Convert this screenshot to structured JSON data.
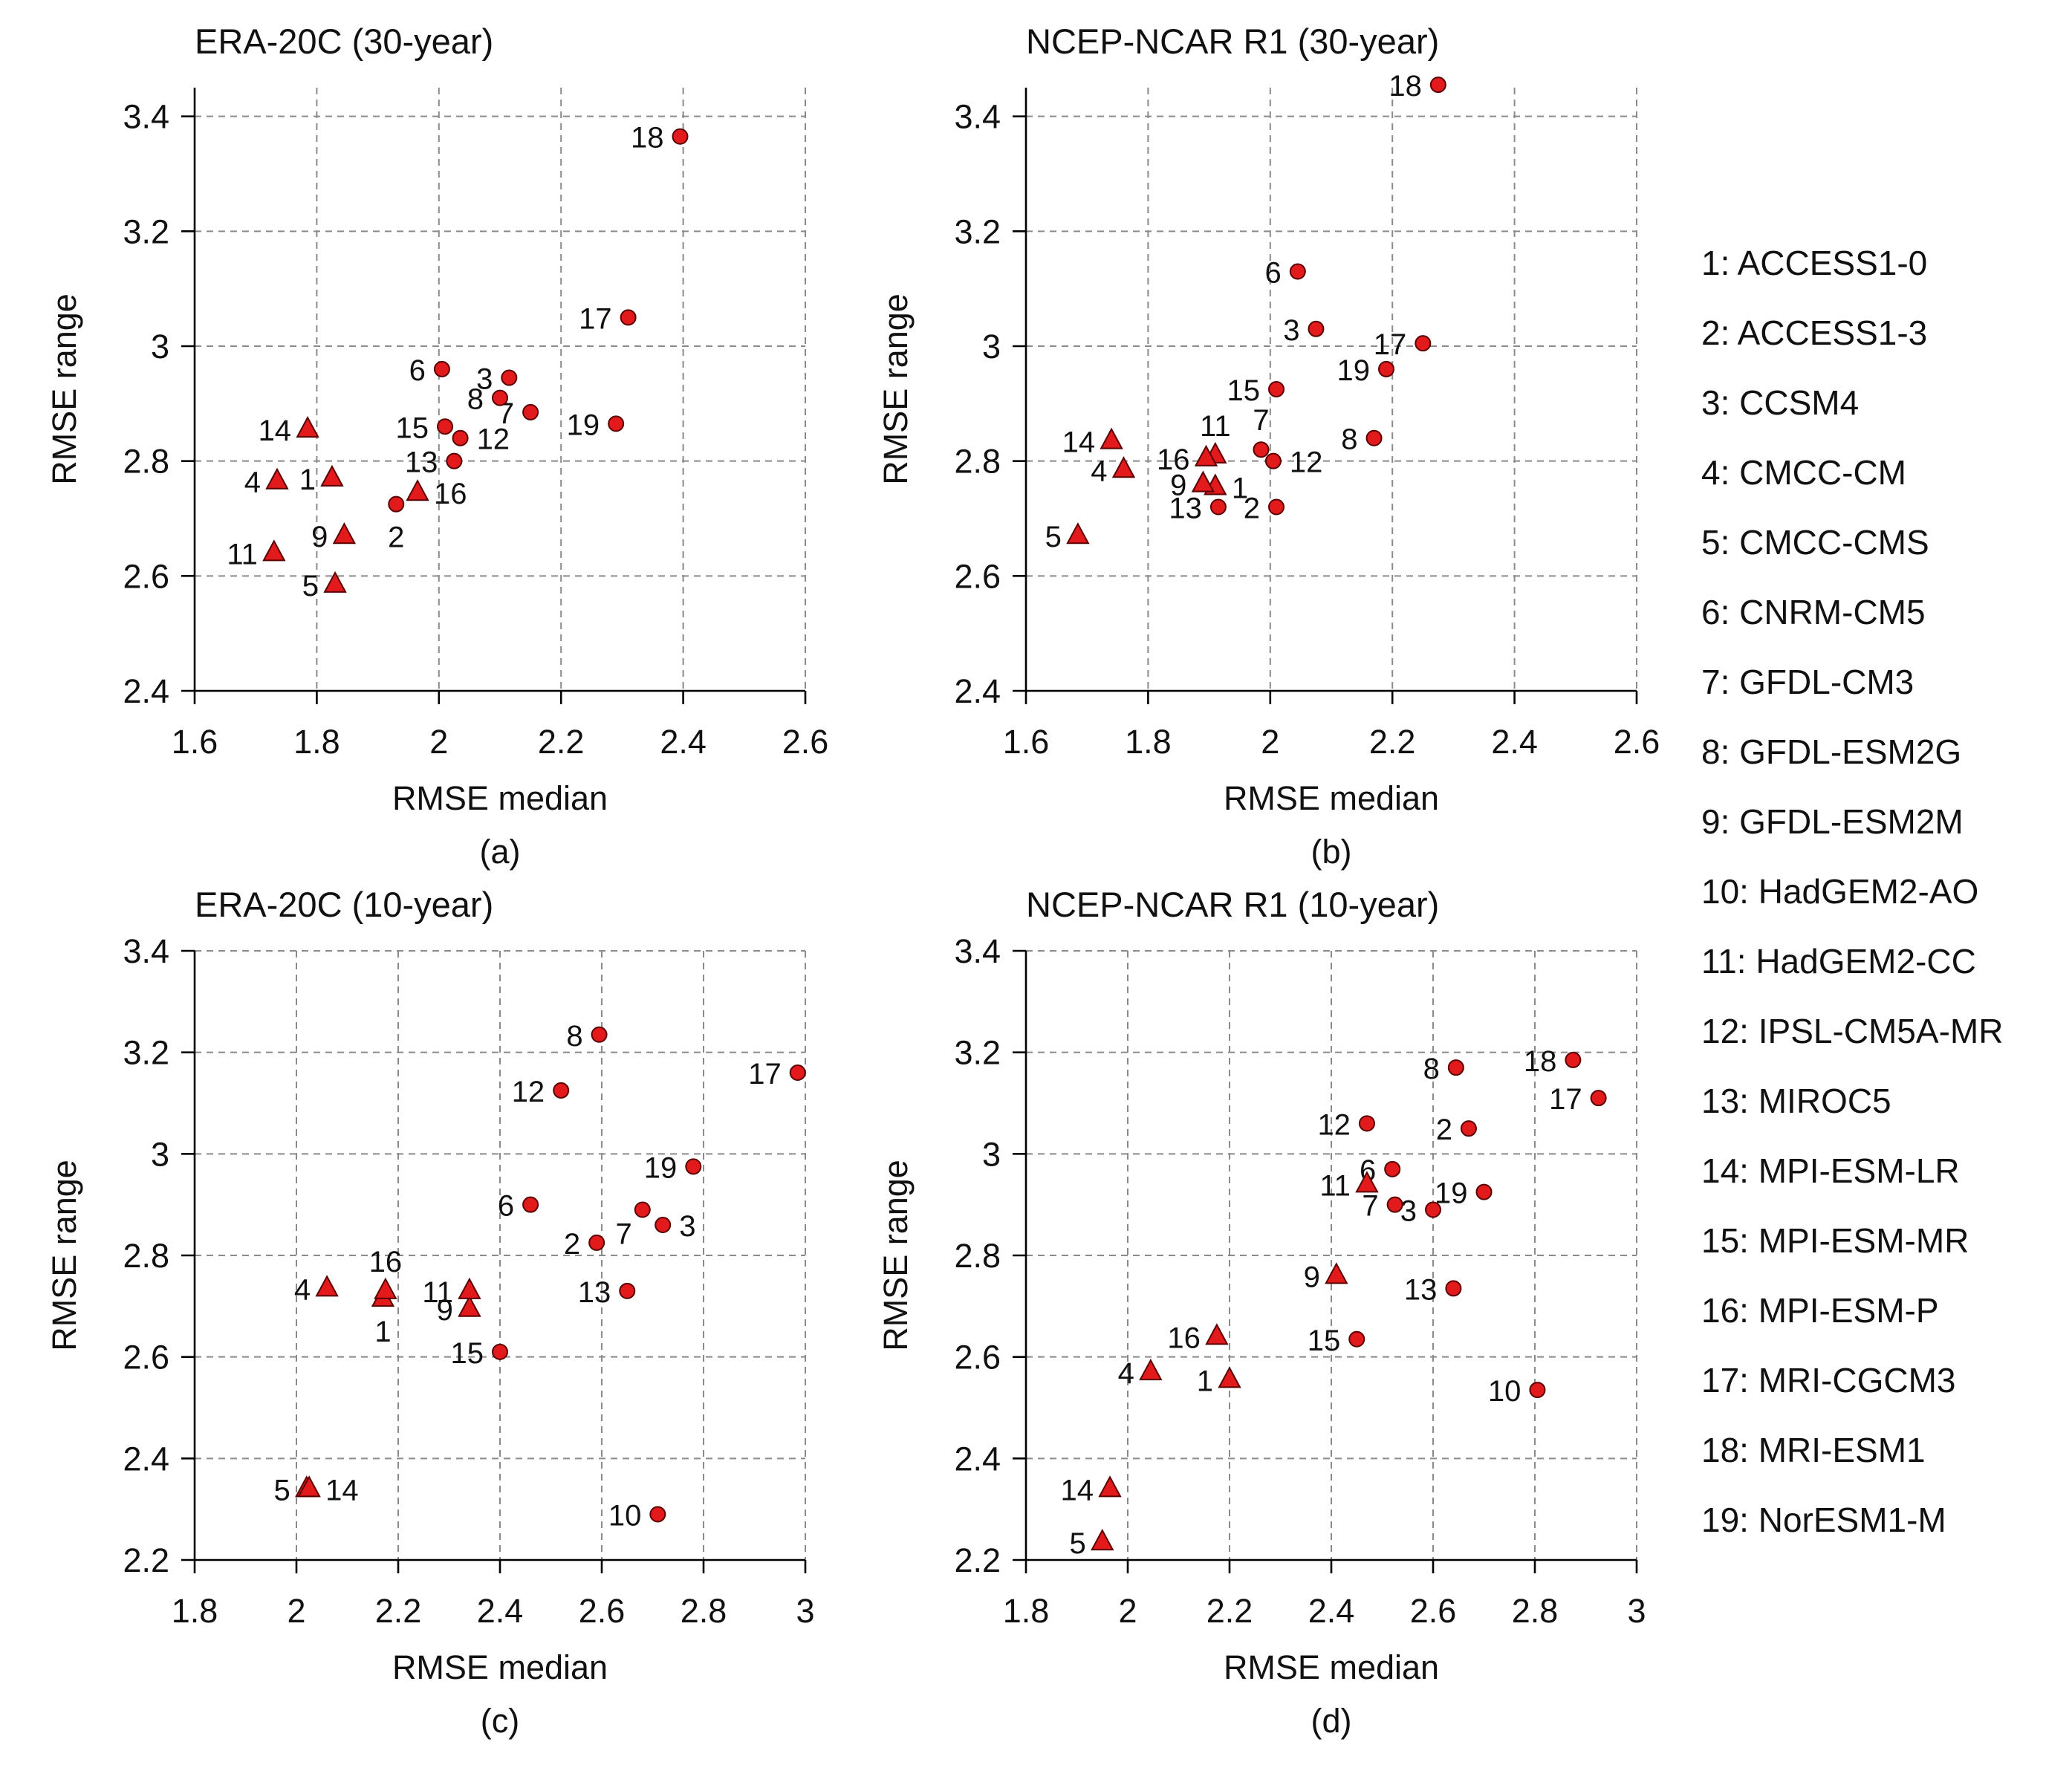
{
  "accent_color": "#e31a1c",
  "marker_legend": {
    "circle": "dot-icon",
    "triangle": "triangle-icon"
  },
  "model_legend": [
    "1: ACCESS1-0",
    "2: ACCESS1-3",
    "3: CCSM4",
    "4: CMCC-CM",
    "5: CMCC-CMS",
    "6: CNRM-CM5",
    "7: GFDL-CM3",
    "8: GFDL-ESM2G",
    "9: GFDL-ESM2M",
    "10: HadGEM2-AO",
    "11: HadGEM2-CC",
    "12: IPSL-CM5A-MR",
    "13: MIROC5",
    "14: MPI-ESM-LR",
    "15: MPI-ESM-MR",
    "16: MPI-ESM-P",
    "17: MRI-CGCM3",
    "18: MRI-ESM1",
    "19: NorESM1-M"
  ],
  "chart_data": [
    {
      "type": "scatter",
      "title": "ERA-20C (30-year)",
      "panel_label": "(a)",
      "xlabel": "RMSE median",
      "ylabel": "RMSE range",
      "xlim": [
        1.6,
        2.6
      ],
      "ylim": [
        2.4,
        3.45
      ],
      "xticks": [
        1.6,
        1.8,
        2.0,
        2.2,
        2.4,
        2.6
      ],
      "xtick_labels": [
        "1.6",
        "1.8",
        "2",
        "2.2",
        "2.4",
        "2.6"
      ],
      "yticks": [
        2.4,
        2.6,
        2.8,
        3.0,
        3.2,
        3.4
      ],
      "ytick_labels": [
        "2.4",
        "2.6",
        "2.8",
        "3",
        "3.2",
        "3.4"
      ],
      "grid": true,
      "points": [
        {
          "label": "1",
          "x": 1.825,
          "y": 2.77,
          "marker": "triangle",
          "label_side": "left"
        },
        {
          "label": "2",
          "x": 1.93,
          "y": 2.725,
          "marker": "circle",
          "label_side": "below"
        },
        {
          "label": "3",
          "x": 2.115,
          "y": 2.945,
          "marker": "circle",
          "label_side": "left"
        },
        {
          "label": "4",
          "x": 1.735,
          "y": 2.765,
          "marker": "triangle",
          "label_side": "left"
        },
        {
          "label": "5",
          "x": 1.83,
          "y": 2.585,
          "marker": "triangle",
          "label_side": "left"
        },
        {
          "label": "6",
          "x": 2.005,
          "y": 2.96,
          "marker": "circle",
          "label_side": "left"
        },
        {
          "label": "7",
          "x": 2.15,
          "y": 2.885,
          "marker": "circle",
          "label_side": "left"
        },
        {
          "label": "8",
          "x": 2.1,
          "y": 2.91,
          "marker": "circle",
          "label_side": "left"
        },
        {
          "label": "9",
          "x": 1.845,
          "y": 2.67,
          "marker": "triangle",
          "label_side": "left"
        },
        {
          "label": "11",
          "x": 1.73,
          "y": 2.64,
          "marker": "triangle",
          "label_side": "left"
        },
        {
          "label": "12",
          "x": 2.035,
          "y": 2.84,
          "marker": "circle",
          "label_side": "right"
        },
        {
          "label": "13",
          "x": 2.025,
          "y": 2.8,
          "marker": "circle",
          "label_side": "left"
        },
        {
          "label": "14",
          "x": 1.785,
          "y": 2.855,
          "marker": "triangle",
          "label_side": "left"
        },
        {
          "label": "15",
          "x": 2.01,
          "y": 2.86,
          "marker": "circle",
          "label_side": "left"
        },
        {
          "label": "16",
          "x": 1.965,
          "y": 2.745,
          "marker": "triangle",
          "label_side": "right"
        },
        {
          "label": "17",
          "x": 2.31,
          "y": 3.05,
          "marker": "circle",
          "label_side": "left"
        },
        {
          "label": "18",
          "x": 2.395,
          "y": 3.365,
          "marker": "circle",
          "label_side": "left"
        },
        {
          "label": "19",
          "x": 2.29,
          "y": 2.865,
          "marker": "circle",
          "label_side": "left"
        }
      ]
    },
    {
      "type": "scatter",
      "title": "NCEP-NCAR R1 (30-year)",
      "panel_label": "(b)",
      "xlabel": "RMSE median",
      "ylabel": "RMSE range",
      "xlim": [
        1.6,
        2.6
      ],
      "ylim": [
        2.4,
        3.45
      ],
      "xticks": [
        1.6,
        1.8,
        2.0,
        2.2,
        2.4,
        2.6
      ],
      "xtick_labels": [
        "1.6",
        "1.8",
        "2",
        "2.2",
        "2.4",
        "2.6"
      ],
      "yticks": [
        2.4,
        2.6,
        2.8,
        3.0,
        3.2,
        3.4
      ],
      "ytick_labels": [
        "2.4",
        "2.6",
        "2.8",
        "3",
        "3.2",
        "3.4"
      ],
      "grid": true,
      "points": [
        {
          "label": "1",
          "x": 1.91,
          "y": 2.755,
          "marker": "triangle",
          "label_side": "right"
        },
        {
          "label": "2",
          "x": 2.01,
          "y": 2.72,
          "marker": "circle",
          "label_side": "left"
        },
        {
          "label": "3",
          "x": 2.075,
          "y": 3.03,
          "marker": "circle",
          "label_side": "left"
        },
        {
          "label": "4",
          "x": 1.76,
          "y": 2.785,
          "marker": "triangle",
          "label_side": "left"
        },
        {
          "label": "5",
          "x": 1.685,
          "y": 2.67,
          "marker": "triangle",
          "label_side": "left"
        },
        {
          "label": "6",
          "x": 2.045,
          "y": 3.13,
          "marker": "circle",
          "label_side": "left"
        },
        {
          "label": "7",
          "x": 1.985,
          "y": 2.82,
          "marker": "circle",
          "label_side": "above"
        },
        {
          "label": "8",
          "x": 2.17,
          "y": 2.84,
          "marker": "circle",
          "label_side": "left"
        },
        {
          "label": "9",
          "x": 1.89,
          "y": 2.76,
          "marker": "triangle",
          "label_side": "left"
        },
        {
          "label": "11",
          "x": 1.91,
          "y": 2.81,
          "marker": "triangle",
          "label_side": "above"
        },
        {
          "label": "12",
          "x": 2.005,
          "y": 2.8,
          "marker": "circle",
          "label_side": "right"
        },
        {
          "label": "13",
          "x": 1.915,
          "y": 2.72,
          "marker": "circle",
          "label_side": "left"
        },
        {
          "label": "14",
          "x": 1.74,
          "y": 2.835,
          "marker": "triangle",
          "label_side": "left"
        },
        {
          "label": "15",
          "x": 2.01,
          "y": 2.925,
          "marker": "circle",
          "label_side": "left"
        },
        {
          "label": "16",
          "x": 1.895,
          "y": 2.805,
          "marker": "triangle",
          "label_side": "left"
        },
        {
          "label": "17",
          "x": 2.25,
          "y": 3.005,
          "marker": "circle",
          "label_side": "left"
        },
        {
          "label": "18",
          "x": 2.275,
          "y": 3.455,
          "marker": "circle",
          "label_side": "left"
        },
        {
          "label": "19",
          "x": 2.19,
          "y": 2.96,
          "marker": "circle",
          "label_side": "left"
        }
      ]
    },
    {
      "type": "scatter",
      "title": "ERA-20C (10-year)",
      "panel_label": "(c)",
      "xlabel": "RMSE median",
      "ylabel": "RMSE range",
      "xlim": [
        1.8,
        3.0
      ],
      "ylim": [
        2.2,
        3.4
      ],
      "xticks": [
        1.8,
        2.0,
        2.2,
        2.4,
        2.6,
        2.8,
        3.0
      ],
      "xtick_labels": [
        "1.8",
        "2",
        "2.2",
        "2.4",
        "2.6",
        "2.8",
        "3"
      ],
      "yticks": [
        2.2,
        2.4,
        2.6,
        2.8,
        3.0,
        3.2,
        3.4
      ],
      "ytick_labels": [
        "2.2",
        "2.4",
        "2.6",
        "2.8",
        "3",
        "3.2",
        "3.4"
      ],
      "grid": true,
      "points": [
        {
          "label": "1",
          "x": 2.17,
          "y": 2.715,
          "marker": "triangle",
          "label_side": "below"
        },
        {
          "label": "2",
          "x": 2.59,
          "y": 2.825,
          "marker": "circle",
          "label_side": "left"
        },
        {
          "label": "3",
          "x": 2.72,
          "y": 2.86,
          "marker": "circle",
          "label_side": "right"
        },
        {
          "label": "4",
          "x": 2.06,
          "y": 2.735,
          "marker": "triangle",
          "label_side": "left"
        },
        {
          "label": "5",
          "x": 2.02,
          "y": 2.34,
          "marker": "triangle",
          "label_side": "left"
        },
        {
          "label": "6",
          "x": 2.46,
          "y": 2.9,
          "marker": "circle",
          "label_side": "left"
        },
        {
          "label": "7",
          "x": 2.68,
          "y": 2.89,
          "marker": "circle",
          "label_side": "below-left"
        },
        {
          "label": "8",
          "x": 2.595,
          "y": 3.235,
          "marker": "circle",
          "label_side": "left"
        },
        {
          "label": "9",
          "x": 2.34,
          "y": 2.695,
          "marker": "triangle",
          "label_side": "left"
        },
        {
          "label": "10",
          "x": 2.71,
          "y": 2.29,
          "marker": "circle",
          "label_side": "left"
        },
        {
          "label": "11",
          "x": 2.34,
          "y": 2.73,
          "marker": "triangle",
          "label_side": "left"
        },
        {
          "label": "12",
          "x": 2.52,
          "y": 3.125,
          "marker": "circle",
          "label_side": "left"
        },
        {
          "label": "13",
          "x": 2.65,
          "y": 2.73,
          "marker": "circle",
          "label_side": "left"
        },
        {
          "label": "14",
          "x": 2.025,
          "y": 2.34,
          "marker": "triangle",
          "label_side": "right"
        },
        {
          "label": "15",
          "x": 2.4,
          "y": 2.61,
          "marker": "circle",
          "label_side": "left"
        },
        {
          "label": "16",
          "x": 2.175,
          "y": 2.73,
          "marker": "triangle",
          "label_side": "above"
        },
        {
          "label": "17",
          "x": 2.985,
          "y": 3.16,
          "marker": "circle",
          "label_side": "left"
        },
        {
          "label": "19",
          "x": 2.78,
          "y": 2.975,
          "marker": "circle",
          "label_side": "left"
        }
      ]
    },
    {
      "type": "scatter",
      "title": "NCEP-NCAR R1 (10-year)",
      "panel_label": "(d)",
      "xlabel": "RMSE median",
      "ylabel": "RMSE range",
      "xlim": [
        1.8,
        3.0
      ],
      "ylim": [
        2.2,
        3.4
      ],
      "xticks": [
        1.8,
        2.0,
        2.2,
        2.4,
        2.6,
        2.8,
        3.0
      ],
      "xtick_labels": [
        "1.8",
        "2",
        "2.2",
        "2.4",
        "2.6",
        "2.8",
        "3"
      ],
      "yticks": [
        2.2,
        2.4,
        2.6,
        2.8,
        3.0,
        3.2,
        3.4
      ],
      "ytick_labels": [
        "2.2",
        "2.4",
        "2.6",
        "2.8",
        "3",
        "3.2",
        "3.4"
      ],
      "grid": true,
      "points": [
        {
          "label": "1",
          "x": 2.2,
          "y": 2.555,
          "marker": "triangle",
          "label_side": "left"
        },
        {
          "label": "2",
          "x": 2.67,
          "y": 3.05,
          "marker": "circle",
          "label_side": "left"
        },
        {
          "label": "3",
          "x": 2.6,
          "y": 2.89,
          "marker": "circle",
          "label_side": "left"
        },
        {
          "label": "4",
          "x": 2.045,
          "y": 2.57,
          "marker": "triangle",
          "label_side": "left"
        },
        {
          "label": "5",
          "x": 1.95,
          "y": 2.235,
          "marker": "triangle",
          "label_side": "left"
        },
        {
          "label": "6",
          "x": 2.52,
          "y": 2.97,
          "marker": "circle",
          "label_side": "left"
        },
        {
          "label": "7",
          "x": 2.525,
          "y": 2.9,
          "marker": "circle",
          "label_side": "left"
        },
        {
          "label": "8",
          "x": 2.645,
          "y": 3.17,
          "marker": "circle",
          "label_side": "left"
        },
        {
          "label": "9",
          "x": 2.41,
          "y": 2.76,
          "marker": "triangle",
          "label_side": "left"
        },
        {
          "label": "10",
          "x": 2.805,
          "y": 2.535,
          "marker": "circle",
          "label_side": "left"
        },
        {
          "label": "11",
          "x": 2.47,
          "y": 2.94,
          "marker": "triangle",
          "label_side": "left"
        },
        {
          "label": "12",
          "x": 2.47,
          "y": 3.06,
          "marker": "circle",
          "label_side": "left"
        },
        {
          "label": "13",
          "x": 2.64,
          "y": 2.735,
          "marker": "circle",
          "label_side": "left"
        },
        {
          "label": "14",
          "x": 1.965,
          "y": 2.34,
          "marker": "triangle",
          "label_side": "left"
        },
        {
          "label": "15",
          "x": 2.45,
          "y": 2.635,
          "marker": "circle",
          "label_side": "left"
        },
        {
          "label": "16",
          "x": 2.175,
          "y": 2.64,
          "marker": "triangle",
          "label_side": "left"
        },
        {
          "label": "17",
          "x": 2.925,
          "y": 3.11,
          "marker": "circle",
          "label_side": "left"
        },
        {
          "label": "18",
          "x": 2.875,
          "y": 3.185,
          "marker": "circle",
          "label_side": "left"
        },
        {
          "label": "19",
          "x": 2.7,
          "y": 2.925,
          "marker": "circle",
          "label_side": "left"
        }
      ]
    }
  ]
}
